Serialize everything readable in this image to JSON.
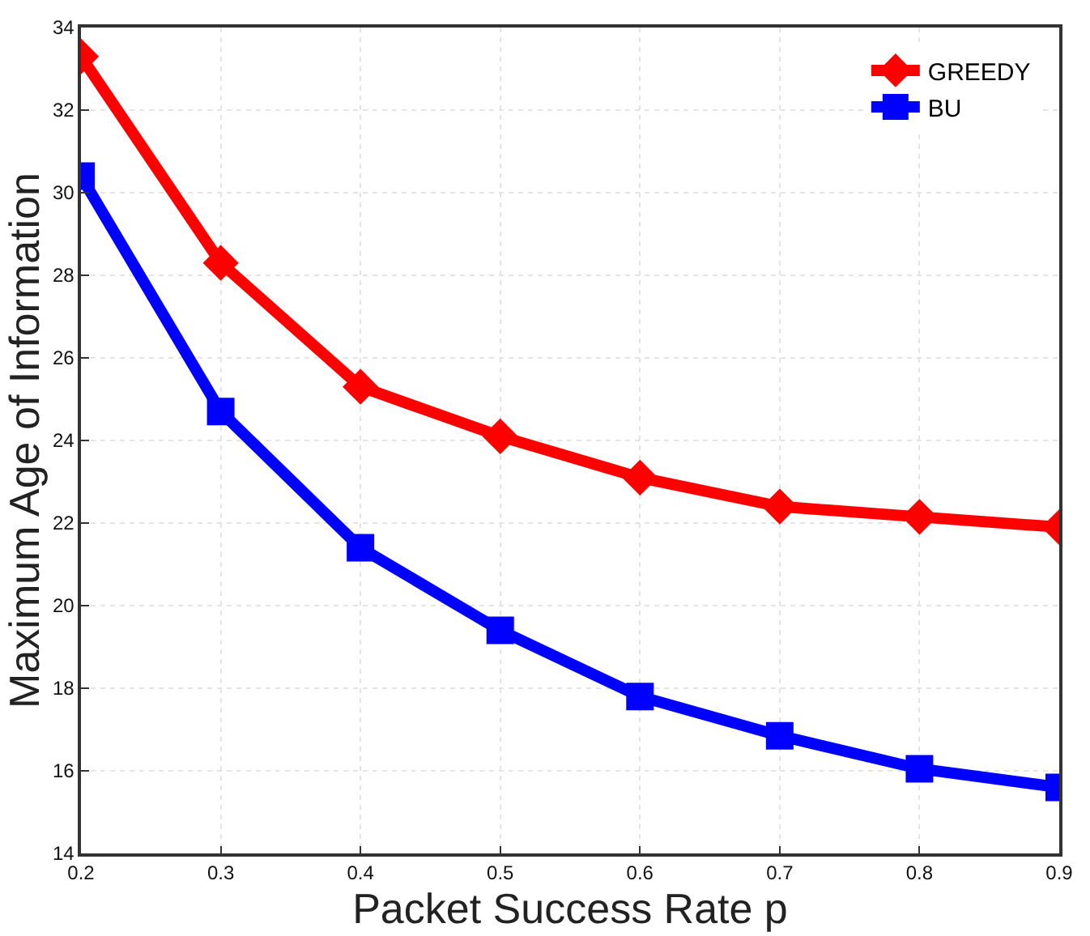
{
  "chart_data": {
    "type": "line",
    "xlabel": "Packet Success Rate p",
    "ylabel": "Maximum Age of Information",
    "x": [
      0.2,
      0.3,
      0.4,
      0.5,
      0.6,
      0.7,
      0.8,
      0.9
    ],
    "series": [
      {
        "name": "GREEDY",
        "color": "#ff0000",
        "values": [
          33.3,
          28.3,
          25.3,
          24.1,
          23.1,
          22.4,
          22.15,
          21.9
        ],
        "marker": "diamond"
      },
      {
        "name": "BU",
        "color": "#0000ff",
        "values": [
          30.4,
          24.7,
          21.4,
          19.4,
          17.8,
          16.85,
          16.05,
          15.6
        ],
        "marker": "square"
      }
    ],
    "xlim": [
      0.2,
      0.9
    ],
    "xticks": [
      0.2,
      0.3,
      0.4,
      0.5,
      0.6,
      0.7,
      0.8,
      0.9
    ],
    "ylim": [
      14,
      34
    ],
    "yticks": [
      14,
      16,
      18,
      20,
      22,
      24,
      26,
      28,
      30,
      32,
      34
    ],
    "grid": true,
    "legend": "top right",
    "line_style": "solid"
  }
}
